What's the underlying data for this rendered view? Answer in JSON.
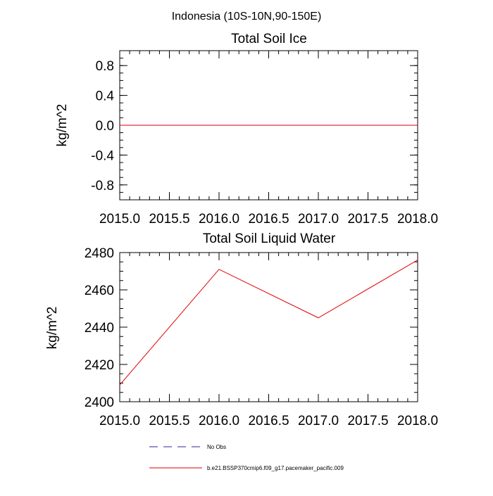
{
  "figure": {
    "suptitle": "Indonesia (10S-10N,90-150E)"
  },
  "chart_data": [
    {
      "type": "line",
      "title": "Total Soil Ice",
      "xlabel": "",
      "ylabel": "kg/m^2",
      "xlim": [
        2015.0,
        2018.0
      ],
      "ylim": [
        -1.0,
        1.0
      ],
      "x_ticks": [
        "2015.0",
        "2015.5",
        "2016.0",
        "2016.5",
        "2017.0",
        "2017.5",
        "2018.0"
      ],
      "y_ticks": [
        "0.8",
        "0.4",
        "0.0",
        "-0.4",
        "-0.8"
      ],
      "grid": false,
      "series": [
        {
          "name": "b.e21.BSSP370cmip6.f09_g17.pacemaker_pacific.009",
          "color": "#e00000",
          "x": [
            2015.0,
            2016.0,
            2017.0,
            2018.0
          ],
          "y": [
            0.0,
            0.0,
            0.0,
            0.0
          ]
        }
      ]
    },
    {
      "type": "line",
      "title": "Total Soil Liquid Water",
      "xlabel": "",
      "ylabel": "kg/m^2",
      "xlim": [
        2015.0,
        2018.0
      ],
      "ylim": [
        2400,
        2480
      ],
      "x_ticks": [
        "2015.0",
        "2015.5",
        "2016.0",
        "2016.5",
        "2017.0",
        "2017.5",
        "2018.0"
      ],
      "y_ticks": [
        "2480",
        "2460",
        "2440",
        "2420",
        "2400"
      ],
      "grid": false,
      "series": [
        {
          "name": "b.e21.BSSP370cmip6.f09_g17.pacemaker_pacific.009",
          "color": "#e00000",
          "x": [
            2015.0,
            2016.0,
            2017.0,
            2018.0
          ],
          "y": [
            2409,
            2471,
            2445,
            2476
          ]
        }
      ]
    }
  ],
  "legend": {
    "placement": "bottom",
    "items": [
      {
        "label": "No Obs",
        "style": "dashed",
        "color": "#2a2a9a"
      },
      {
        "label": "b.e21.BSSP370cmip6.f09_g17.pacemaker_pacific.009",
        "style": "solid",
        "color": "#e00000"
      }
    ]
  }
}
